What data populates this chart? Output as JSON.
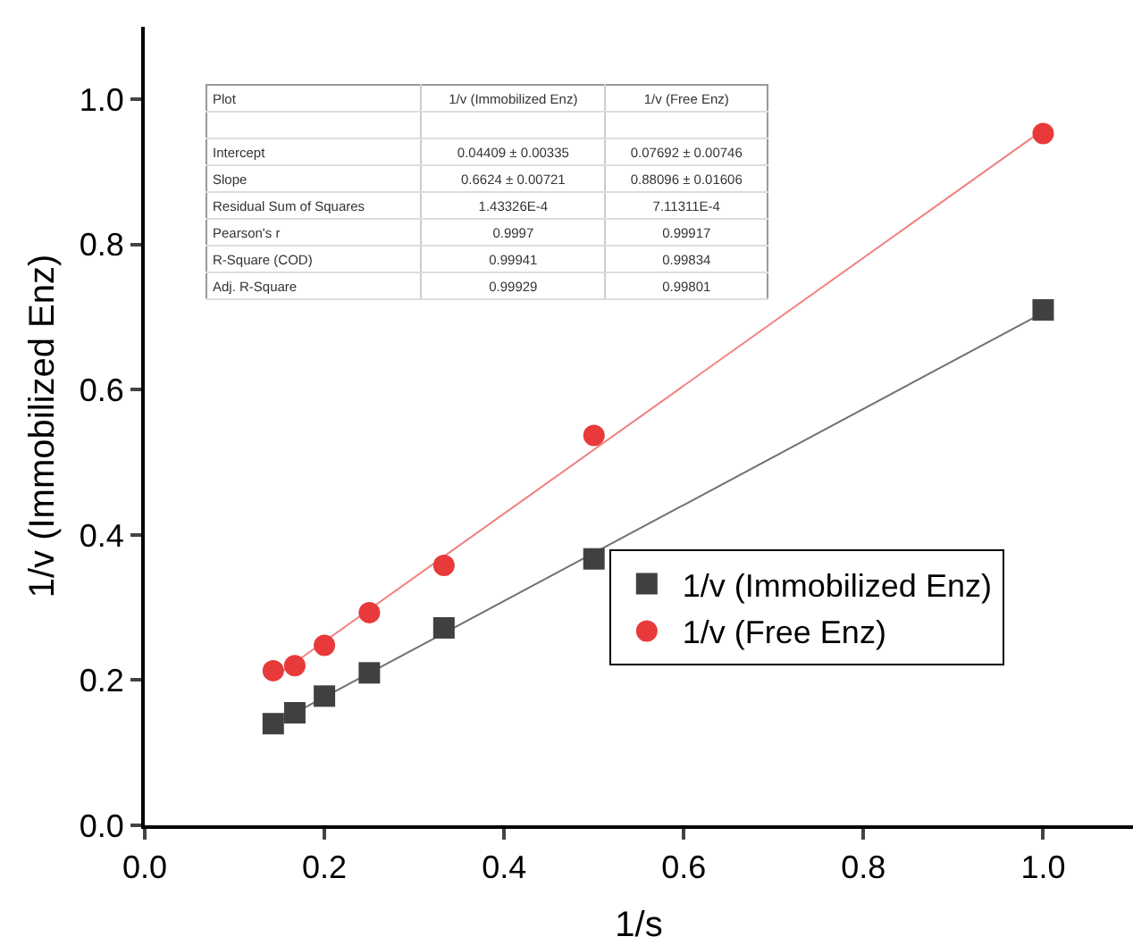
{
  "chart_data": {
    "type": "scatter",
    "xlabel": "1/s",
    "ylabel": "1/v (Immobilized Enz)",
    "xlim": [
      0,
      1.1
    ],
    "ylim": [
      0,
      1.1
    ],
    "xticks": [
      {
        "value": 0,
        "label": "0.0"
      },
      {
        "value": 0.2,
        "label": "0.2"
      },
      {
        "value": 0.4,
        "label": "0.4"
      },
      {
        "value": 0.6,
        "label": "0.6"
      },
      {
        "value": 0.8,
        "label": "0.8"
      },
      {
        "value": 1,
        "label": "1.0"
      }
    ],
    "yticks": [
      {
        "value": 0,
        "label": "0.0"
      },
      {
        "value": 0.2,
        "label": "0.2"
      },
      {
        "value": 0.4,
        "label": "0.4"
      },
      {
        "value": 0.6,
        "label": "0.6"
      },
      {
        "value": 0.8,
        "label": "0.8"
      },
      {
        "value": 1,
        "label": "1.0"
      }
    ],
    "grid": false,
    "legend": "bottom right",
    "series": [
      {
        "type": "line",
        "color": "#707070",
        "marker": "none",
        "x": [
          0.143,
          1
        ],
        "values": [
          0.139,
          0.706
        ]
      },
      {
        "type": "line",
        "color": "#f08080",
        "marker": "none",
        "x": [
          0.143,
          1
        ],
        "values": [
          0.203,
          0.958
        ]
      },
      {
        "name": "1/v (Immobilized Enz)",
        "color": "#404040",
        "marker": "square",
        "x": [
          0.143,
          0.167,
          0.2,
          0.25,
          0.333,
          0.5,
          1
        ],
        "values": [
          0.14,
          0.155,
          0.178,
          0.21,
          0.272,
          0.367,
          0.71
        ]
      },
      {
        "name": "1/v (Free Enz)",
        "color": "#e83a3a",
        "marker": "circle",
        "x": [
          0.143,
          0.167,
          0.2,
          0.25,
          0.333,
          0.5,
          1
        ],
        "values": [
          0.213,
          0.22,
          0.248,
          0.293,
          0.358,
          0.537,
          0.953
        ]
      }
    ],
    "annotations": [
      "Plot",
      "1/v (Immobilized Enz)",
      "1/v (Free Enz)",
      "Intercept",
      "0.04409 ± 0.00335",
      "0.07692 ± 0.00746",
      "Slope",
      "0.6624 ± 0.00721",
      "0.88096 ± 0.01606",
      "Residual Sum of Squares",
      "1.43326E-4",
      "7.11311E-4",
      "Pearson's r",
      "0.9997",
      "0.99917",
      "R-Square (COD)",
      "0.99941",
      "0.99834",
      "Adj. R-Square",
      "0.99929",
      "0.99801"
    ]
  }
}
